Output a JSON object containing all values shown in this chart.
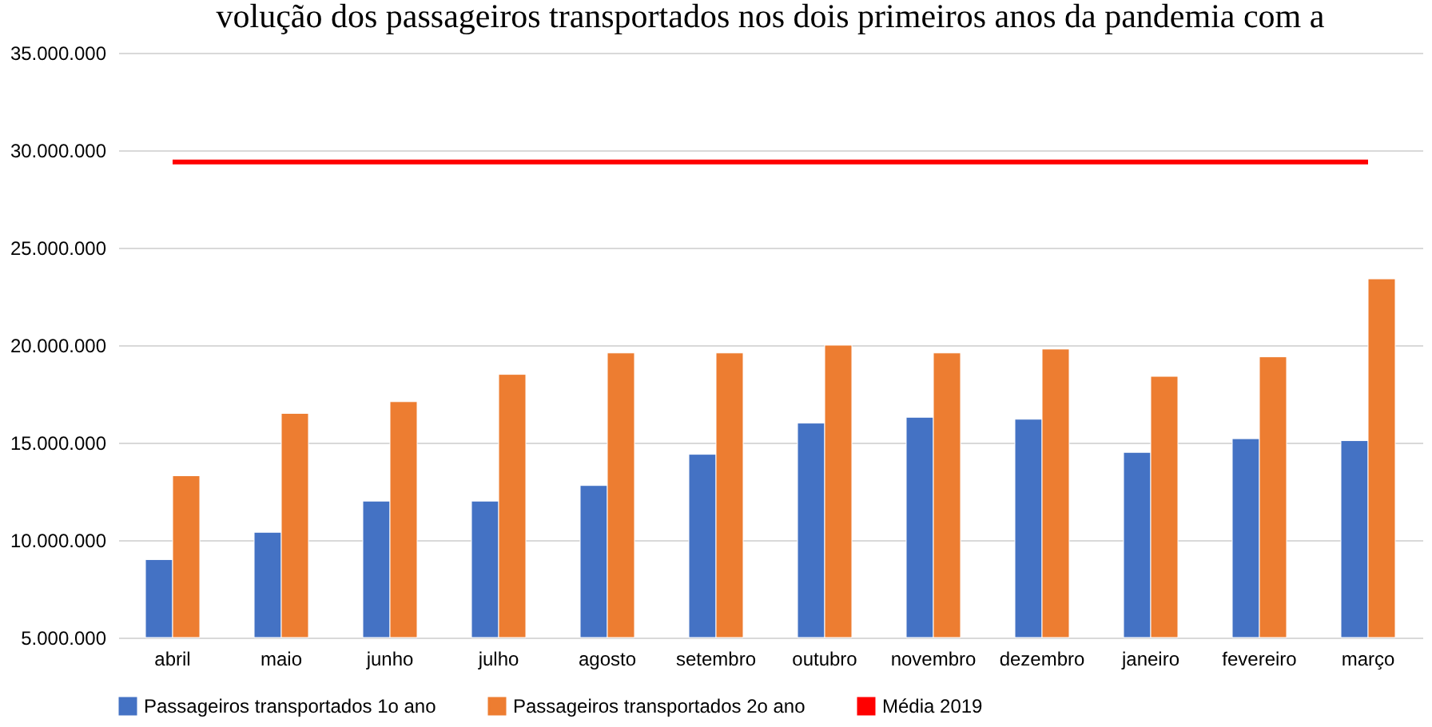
{
  "chart_data": {
    "type": "bar",
    "title": "volução dos passageiros transportados nos dois primeiros anos da pandemia com a",
    "categories": [
      "abril",
      "maio",
      "junho",
      "julho",
      "agosto",
      "setembro",
      "outubro",
      "novembro",
      "dezembro",
      "janeiro",
      "fevereiro",
      "março"
    ],
    "series": [
      {
        "name": "Passageiros transportados 1o ano",
        "color": "#4472c4",
        "values": [
          9000000,
          10400000,
          12000000,
          12000000,
          12800000,
          14400000,
          16000000,
          16300000,
          16200000,
          14500000,
          15200000,
          15100000
        ]
      },
      {
        "name": "Passageiros transportados 2o ano",
        "color": "#ed7d31",
        "values": [
          13300000,
          16500000,
          17100000,
          18500000,
          19600000,
          19600000,
          20000000,
          19600000,
          19800000,
          18400000,
          19400000,
          23400000
        ]
      },
      {
        "name": "Média 2019",
        "color": "#ff0000",
        "type": "line",
        "values": [
          29400000,
          29400000,
          29400000,
          29400000,
          29400000,
          29400000,
          29400000,
          29400000,
          29400000,
          29400000,
          29400000,
          29400000
        ]
      }
    ],
    "ylim": [
      5000000,
      35000000
    ],
    "yticks": [
      {
        "value": 5000000,
        "label": "5.000.000"
      },
      {
        "value": 10000000,
        "label": "10.000.000"
      },
      {
        "value": 15000000,
        "label": "15.000.000"
      },
      {
        "value": 20000000,
        "label": "20.000.000"
      },
      {
        "value": 25000000,
        "label": "25.000.000"
      },
      {
        "value": 30000000,
        "label": "30.000.000"
      },
      {
        "value": 35000000,
        "label": "35.000.000"
      }
    ],
    "grid": "y",
    "legend": "bottom"
  }
}
